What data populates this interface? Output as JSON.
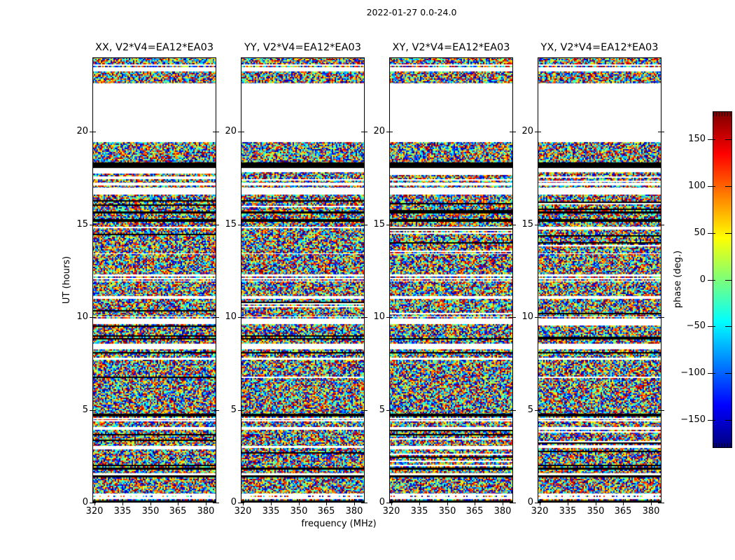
{
  "figure": {
    "title": "2022-01-27 0.0-24.0"
  },
  "chart_data": {
    "type": "heatmap",
    "title": "2022-01-27 0.0-24.0",
    "xlabel": "frequency (MHz)",
    "ylabel": "UT (hours)",
    "xlim": [
      319,
      385.5
    ],
    "ylim": [
      0,
      24
    ],
    "xticks": [
      320,
      335,
      350,
      365,
      380
    ],
    "yticks": [
      0,
      5,
      10,
      15,
      20
    ],
    "grid": false,
    "legend_position": "none",
    "panels": [
      {
        "title": "XX, V2*V4=EA12*EA03",
        "seed": 101
      },
      {
        "title": "YY, V2*V4=EA12*EA03",
        "seed": 202
      },
      {
        "title": "XY, V2*V4=EA12*EA03",
        "seed": 303
      },
      {
        "title": "YX, V2*V4=EA12*EA03",
        "seed": 404
      }
    ],
    "colorbar": {
      "label": "phase (deg.)",
      "ticks": [
        150,
        100,
        50,
        0,
        -50,
        -100,
        -150
      ],
      "vmin": -180,
      "vmax": 180,
      "colormap": "jet"
    },
    "values_description": "uniform random interferometric phase noise in unflagged time-frequency cells; identical flagging (band structure) across all four correlation panels",
    "time_bands": [
      [
        24.0,
        23.7,
        "noise"
      ],
      [
        23.7,
        23.42,
        "stripes"
      ],
      [
        23.42,
        23.25,
        "white"
      ],
      [
        23.25,
        22.6,
        "noise"
      ],
      [
        22.6,
        19.45,
        "white"
      ],
      [
        19.45,
        18.34,
        "noise"
      ],
      [
        18.34,
        18.04,
        "black"
      ],
      [
        18.04,
        17.8,
        "white"
      ],
      [
        17.8,
        17.25,
        "noiseL"
      ],
      [
        17.25,
        17.1,
        "white"
      ],
      [
        17.1,
        16.98,
        "noise"
      ],
      [
        16.98,
        16.6,
        "white"
      ],
      [
        16.6,
        16.3,
        "noise"
      ],
      [
        16.3,
        15.7,
        "noiseL"
      ],
      [
        15.7,
        15.58,
        "black"
      ],
      [
        15.58,
        15.3,
        "noise"
      ],
      [
        15.3,
        15.12,
        "black"
      ],
      [
        15.12,
        14.85,
        "noise"
      ],
      [
        14.85,
        14.78,
        "white"
      ],
      [
        14.78,
        13.5,
        "noiseL"
      ],
      [
        13.5,
        13.38,
        "stripes"
      ],
      [
        13.38,
        12.32,
        "noise"
      ],
      [
        12.32,
        12.2,
        "white"
      ],
      [
        12.2,
        11.92,
        "stripes"
      ],
      [
        11.92,
        11.15,
        "noise"
      ],
      [
        11.15,
        11.0,
        "white"
      ],
      [
        11.0,
        10.12,
        "noiseL"
      ],
      [
        10.12,
        10.0,
        "stripes"
      ],
      [
        10.0,
        9.93,
        "noise"
      ],
      [
        9.93,
        9.62,
        "white"
      ],
      [
        9.62,
        9.1,
        "noiseL"
      ],
      [
        9.1,
        8.8,
        "dark"
      ],
      [
        8.8,
        8.55,
        "noise"
      ],
      [
        8.55,
        8.25,
        "white"
      ],
      [
        8.25,
        8.1,
        "noise"
      ],
      [
        8.1,
        8.02,
        "black"
      ],
      [
        8.02,
        7.8,
        "noise"
      ],
      [
        7.8,
        7.68,
        "white"
      ],
      [
        7.68,
        6.95,
        "noise"
      ],
      [
        6.95,
        6.65,
        "noiseL"
      ],
      [
        6.65,
        4.78,
        "noise"
      ],
      [
        4.78,
        4.66,
        "black"
      ],
      [
        4.66,
        4.47,
        "stripes"
      ],
      [
        4.47,
        4.36,
        "white"
      ],
      [
        4.36,
        4.06,
        "noise"
      ],
      [
        4.06,
        3.94,
        "white"
      ],
      [
        3.94,
        3.04,
        "noiseL"
      ],
      [
        3.04,
        2.96,
        "white"
      ],
      [
        2.96,
        1.87,
        "noiseL"
      ],
      [
        1.87,
        1.76,
        "black"
      ],
      [
        1.76,
        1.6,
        "noise"
      ],
      [
        1.6,
        1.49,
        "white"
      ],
      [
        1.49,
        1.34,
        "black"
      ],
      [
        1.34,
        0.5,
        "noise"
      ],
      [
        0.5,
        0.2,
        "dots"
      ],
      [
        0.2,
        0.12,
        "noise"
      ],
      [
        0.12,
        0.05,
        "black"
      ],
      [
        0.05,
        0.0,
        "stripes"
      ]
    ]
  }
}
